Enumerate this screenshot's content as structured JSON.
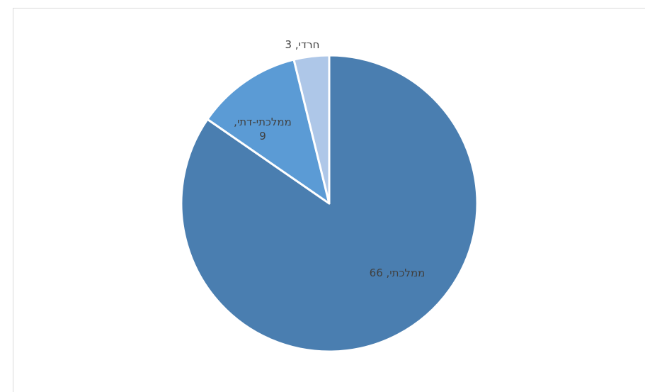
{
  "chart_data": {
    "type": "pie",
    "title": "",
    "categories": [
      "ממלכתי",
      "ממלכתי-דתי",
      "חרדי"
    ],
    "values": [
      66,
      9,
      3
    ],
    "colors": [
      "#4a7eb0",
      "#5b9bd5",
      "#aec7e8"
    ],
    "data_labels": [
      {
        "lines": [
          "ממלכתי, 66"
        ]
      },
      {
        "lines": [
          "ממלכתי-דתי,",
          "9"
        ]
      },
      {
        "lines": [
          "חרדי, 3"
        ]
      }
    ],
    "legend": "none",
    "start_angle_deg": 0,
    "direction": "clockwise"
  }
}
